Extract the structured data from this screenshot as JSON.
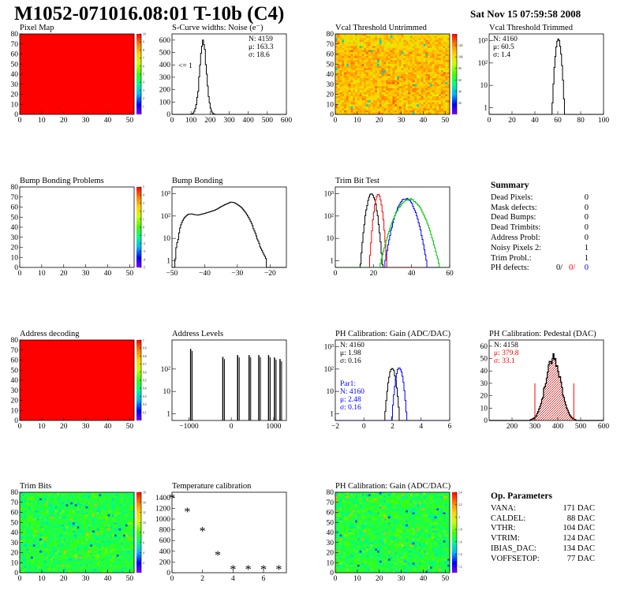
{
  "header": {
    "title": "M1052-071016.08:01 T-10b (C4)",
    "date": "Sat Nov 15 07:59:58 2008"
  },
  "colors": {
    "red": "#ff0000",
    "blue": "#0000ff",
    "green": "#00c800",
    "hatch": "#cc0000"
  },
  "chart_data": [
    {
      "id": "p1",
      "type": "heatmap",
      "title": "Pixel Map",
      "xlim": [
        0,
        52
      ],
      "ylim": [
        0,
        80
      ],
      "xticks": [
        0,
        10,
        20,
        30,
        40,
        50
      ],
      "yticks": [
        0,
        10,
        20,
        30,
        40,
        50,
        60,
        70,
        80
      ],
      "fill": "uniform",
      "zlim": [
        0,
        10
      ],
      "zticks": [
        1,
        2,
        3,
        4,
        5,
        6,
        7,
        8,
        9,
        10
      ]
    },
    {
      "id": "p2",
      "type": "line",
      "title": "S-Curve widths: Noise (e⁻)",
      "xlim": [
        0,
        600
      ],
      "ylim": [
        0,
        650
      ],
      "xticks": [
        0,
        100,
        200,
        300,
        400,
        500,
        600
      ],
      "yticks": [
        0,
        100,
        200,
        300,
        400,
        500,
        600
      ],
      "stats": [
        "N: 4159",
        "μ: 163.3",
        "σ: 18.6"
      ],
      "note": "<= 1",
      "series": [
        {
          "shape": "gauss",
          "mu": 163,
          "sigma": 18,
          "peak": 575
        }
      ]
    },
    {
      "id": "p3",
      "type": "heatmap",
      "title": "Vcal Threshold Untrimmed",
      "xlim": [
        0,
        52
      ],
      "ylim": [
        0,
        80
      ],
      "xticks": [
        0,
        10,
        20,
        30,
        40,
        50
      ],
      "yticks": [
        0,
        10,
        20,
        30,
        40,
        50,
        60,
        70,
        80
      ],
      "fill": "noisy-warm",
      "zlim": [
        0,
        140
      ],
      "zticks": [
        20,
        40,
        60,
        80,
        100,
        120
      ]
    },
    {
      "id": "p4",
      "type": "line",
      "title": "Vcal Threshold Trimmed",
      "xlim": [
        0,
        100
      ],
      "ylim": [
        0.5,
        2000
      ],
      "log": true,
      "xticks": [
        0,
        20,
        40,
        60,
        80,
        100
      ],
      "yticklabels": [
        [
          1,
          "1"
        ],
        [
          10,
          "10"
        ],
        [
          100,
          "10²"
        ],
        [
          1000,
          "10³"
        ]
      ],
      "stats": [
        "N: 4160",
        "μ: 60.5",
        "σ:  1.4"
      ],
      "series": [
        {
          "shape": "gauss",
          "mu": 60.5,
          "sigma": 1.4,
          "peak": 1150
        }
      ]
    },
    {
      "id": "p5",
      "type": "heatmap",
      "title": "Bump Bonding Problems",
      "xlim": [
        0,
        52
      ],
      "ylim": [
        0,
        80
      ],
      "xticks": [
        0,
        10,
        20,
        30,
        40,
        50
      ],
      "yticks": [
        0,
        10,
        20,
        30,
        40,
        50,
        60,
        70,
        80
      ],
      "fill": "empty",
      "zlim": [
        -5,
        5
      ],
      "zticks": [
        -5,
        -4,
        -3,
        -2,
        -1,
        0,
        1,
        2,
        3,
        4,
        5
      ]
    },
    {
      "id": "p6",
      "type": "line",
      "title": "Bump Bonding",
      "xlim": [
        -50,
        -15
      ],
      "ylim": [
        0.5,
        2000
      ],
      "log": true,
      "xticks": [
        -50,
        -40,
        -30,
        -20
      ],
      "yticklabels": [
        [
          1,
          "1"
        ],
        [
          10,
          "10"
        ],
        [
          100,
          "10²"
        ],
        [
          1000,
          "10³"
        ]
      ],
      "series": [
        {
          "shape": "points",
          "pts": [
            [
              -49,
              1
            ],
            [
              -48,
              10
            ],
            [
              -47,
              50
            ],
            [
              -46,
              90
            ],
            [
              -45,
              120
            ],
            [
              -44,
              125
            ],
            [
              -43,
              115
            ],
            [
              -42,
              110
            ],
            [
              -41,
              120
            ],
            [
              -40,
              130
            ],
            [
              -39,
              145
            ],
            [
              -38,
              160
            ],
            [
              -37,
              180
            ],
            [
              -36,
              210
            ],
            [
              -35,
              260
            ],
            [
              -34,
              310
            ],
            [
              -33,
              360
            ],
            [
              -32,
              420
            ],
            [
              -31,
              400
            ],
            [
              -30,
              330
            ],
            [
              -29,
              260
            ],
            [
              -28,
              180
            ],
            [
              -27,
              110
            ],
            [
              -26,
              60
            ],
            [
              -25,
              25
            ],
            [
              -24,
              10
            ],
            [
              -23,
              4
            ],
            [
              -22,
              2
            ],
            [
              -21,
              1
            ]
          ]
        }
      ]
    },
    {
      "id": "p7",
      "type": "line",
      "title": "Trim Bit Test",
      "xlim": [
        0,
        60
      ],
      "ylim": [
        0.5,
        2000
      ],
      "log": true,
      "xticks": [
        0,
        20,
        40,
        60
      ],
      "yticklabels": [
        [
          1,
          "1"
        ],
        [
          10,
          "10"
        ],
        [
          100,
          "10²"
        ],
        [
          1000,
          "10³"
        ]
      ],
      "series": [
        {
          "shape": "gauss",
          "mu": 19,
          "sigma": 1.5,
          "peak": 1000,
          "color": "#000000"
        },
        {
          "shape": "gauss",
          "mu": 22.5,
          "sigma": 1.2,
          "peak": 900,
          "color": "#ff0000"
        },
        {
          "shape": "gauss",
          "mu": 37,
          "sigma": 3.0,
          "peak": 620,
          "color": "#0000ff"
        },
        {
          "shape": "gauss",
          "mu": 39,
          "sigma": 4.2,
          "peak": 560,
          "color": "#00c800"
        }
      ]
    },
    {
      "id": "p9",
      "type": "heatmap",
      "title": "Address decoding",
      "xlim": [
        0,
        52
      ],
      "ylim": [
        0,
        80
      ],
      "xticks": [
        0,
        10,
        20,
        30,
        40,
        50
      ],
      "yticks": [
        0,
        10,
        20,
        30,
        40,
        50,
        60,
        70,
        80
      ],
      "fill": "uniform",
      "zlim": [
        0,
        1
      ],
      "zticks": [
        0.1,
        0.2,
        0.3,
        0.4,
        0.5,
        0.6,
        0.7,
        0.8,
        0.9,
        1
      ]
    },
    {
      "id": "p10",
      "type": "line",
      "title": "Address Levels",
      "xlim": [
        -1400,
        1300
      ],
      "ylim": [
        0.5,
        2000
      ],
      "log": true,
      "xticks": [
        -1000,
        0,
        1000
      ],
      "yticklabels": [
        [
          1,
          "1"
        ],
        [
          10,
          "10"
        ],
        [
          100,
          "10²"
        ]
      ],
      "series": [
        {
          "shape": "spikes",
          "x": [
            -960,
            -200,
            150,
            420,
            650,
            880,
            1020,
            1150
          ],
          "peak": [
            800,
            350,
            420,
            420,
            420,
            420,
            330,
            280
          ]
        }
      ]
    },
    {
      "id": "p11",
      "type": "line",
      "title": "PH Calibration: Gain (ADC/DAC)",
      "xlim": [
        -2,
        6
      ],
      "ylim": [
        0.5,
        2000
      ],
      "log": true,
      "xticks": [
        -2,
        0,
        2,
        4,
        6
      ],
      "yticklabels": [
        [
          1,
          "1"
        ],
        [
          10,
          "10"
        ],
        [
          100,
          "10²"
        ],
        [
          1000,
          "10³"
        ]
      ],
      "stats": [
        "N: 4160",
        "μ: 1.98",
        "σ: 0.16"
      ],
      "stats2": [
        "Par1:",
        "N: 4160",
        "μ: 2.48",
        "σ: 0.16"
      ],
      "series": [
        {
          "shape": "gauss",
          "mu": 1.98,
          "sigma": 0.16,
          "peak": 110,
          "color": "#000000"
        },
        {
          "shape": "gauss",
          "mu": 2.48,
          "sigma": 0.16,
          "peak": 120,
          "color": "#0000ff"
        }
      ]
    },
    {
      "id": "p12",
      "type": "line",
      "title": "PH Calibration: Pedestal (DAC)",
      "xlim": [
        100,
        600
      ],
      "ylim": [
        0,
        65
      ],
      "xticks": [
        200,
        300,
        400,
        500,
        600
      ],
      "yticks": [
        0,
        10,
        20,
        30,
        40,
        50,
        60
      ],
      "stats": [
        "N: 4158",
        "μ: 379.8",
        "σ: 33.1"
      ],
      "cuts": [
        300,
        470
      ],
      "series": [
        {
          "shape": "gauss",
          "mu": 380,
          "sigma": 33,
          "peak": 50
        }
      ]
    },
    {
      "id": "p13",
      "type": "heatmap",
      "title": "Trim Bits",
      "xlim": [
        0,
        52
      ],
      "ylim": [
        0,
        80
      ],
      "xticks": [
        0,
        10,
        20,
        30,
        40,
        50
      ],
      "yticks": [
        0,
        10,
        20,
        30,
        40,
        50,
        60,
        70,
        80
      ],
      "fill": "noisy-green",
      "zlim": [
        0,
        16
      ],
      "zticks": [
        2,
        4,
        6,
        8,
        10,
        12,
        14,
        16
      ]
    },
    {
      "id": "p14",
      "type": "scatter",
      "title": "Temperature calibration",
      "xlim": [
        0,
        7.5
      ],
      "ylim": [
        0,
        1500
      ],
      "xticks": [
        0,
        2,
        4,
        6
      ],
      "yticks": [
        0,
        200,
        400,
        600,
        800,
        1000,
        1200,
        1400
      ],
      "series": [
        {
          "marker": "star",
          "x": [
            0,
            1,
            2,
            3,
            4,
            5,
            6,
            7
          ],
          "y": [
            1390,
            1130,
            770,
            320,
            60,
            60,
            60,
            60
          ]
        }
      ]
    },
    {
      "id": "p15",
      "type": "heatmap",
      "title": "PH Calibration: Gain (ADC/DAC)",
      "xlim": [
        0,
        52
      ],
      "ylim": [
        0,
        80
      ],
      "xticks": [
        0,
        10,
        20,
        30,
        40,
        50
      ],
      "yticks": [
        0,
        10,
        20,
        30,
        40,
        50,
        60,
        70,
        80
      ],
      "fill": "noisy-green",
      "zlim": [
        1.1,
        2.4
      ],
      "zticks": [
        1.2,
        1.4,
        1.6,
        1.8,
        2,
        2.2,
        2.4
      ]
    }
  ],
  "summary": {
    "title": "Summary",
    "rows": [
      {
        "label": "Dead Pixels:",
        "value": "0"
      },
      {
        "label": "Mask defects:",
        "value": "0"
      },
      {
        "label": "Dead Bumps:",
        "value": "0"
      },
      {
        "label": "Dead Trimbits:",
        "value": "0"
      },
      {
        "label": "Address Probl:",
        "value": "0"
      },
      {
        "label": "Noisy Pixels 2:",
        "value": "1"
      },
      {
        "label": "Trim Probl.:",
        "value": "1"
      }
    ],
    "ph": {
      "label": "PH defects:",
      "v1": "0/",
      "v2": "0/",
      "v3": "0"
    }
  },
  "params": {
    "title": "Op. Parameters",
    "rows": [
      {
        "label": "VANA:",
        "value": "171 DAC"
      },
      {
        "label": "CALDEL:",
        "value": "88 DAC"
      },
      {
        "label": "VTHR:",
        "value": "104 DAC"
      },
      {
        "label": "VTRIM:",
        "value": "124 DAC"
      },
      {
        "label": "IBIAS_DAC:",
        "value": "134 DAC"
      },
      {
        "label": "VOFFSETOP:",
        "value": "77 DAC"
      }
    ]
  }
}
